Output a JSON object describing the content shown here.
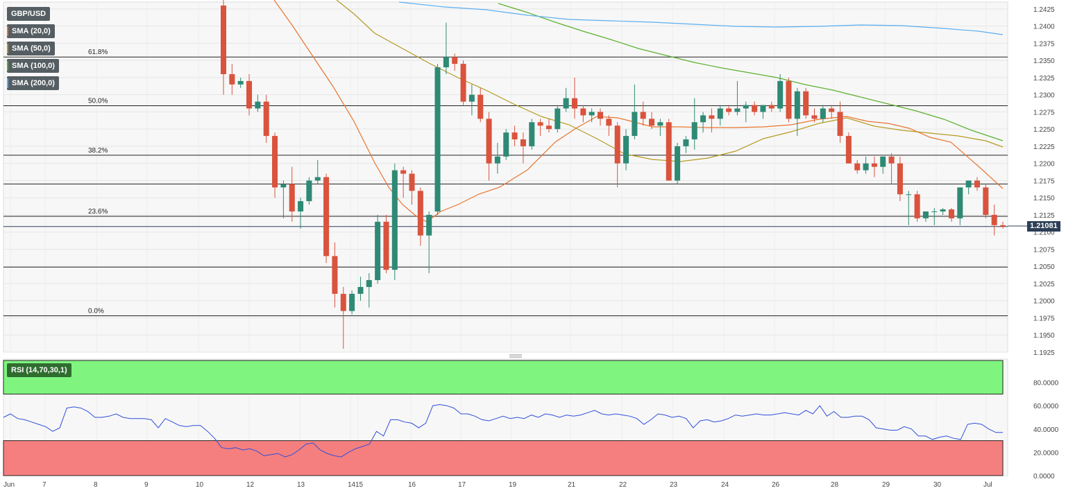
{
  "symbol": "GBP/USD",
  "legend": [
    {
      "label": "SMA (20,0)",
      "color": "#e8742f"
    },
    {
      "label": "SMA (50,0)",
      "color": "#b59a22"
    },
    {
      "label": "SMA (100,0)",
      "color": "#5bb02e"
    },
    {
      "label": "SMA (200,0)",
      "color": "#5aaef0"
    }
  ],
  "rsi_label": "RSI (14,70,30,1)",
  "current_price": "1.21081",
  "colors": {
    "up": "#2e8a74",
    "down": "#d9533d",
    "rsi_line": "#2f4fd8",
    "overbought": "#7ff57f",
    "oversold": "#f57f7f"
  },
  "chart_data": {
    "type": "candlestick",
    "x_labels": [
      "Jun",
      "7",
      "8",
      "9",
      "10",
      "12",
      "13",
      "14",
      "15",
      "16",
      "17",
      "19",
      "21",
      "22",
      "23",
      "24",
      "26",
      "28",
      "29",
      "30",
      "Jul"
    ],
    "y_ticks": [
      "1.2425",
      "1.2400",
      "1.2375",
      "1.2350",
      "1.2325",
      "1.2300",
      "1.2275",
      "1.2250",
      "1.2225",
      "1.2200",
      "1.2175",
      "1.2150",
      "1.2125",
      "1.2100",
      "1.2075",
      "1.2050",
      "1.2025",
      "1.2000",
      "1.1975",
      "1.1950",
      "1.1925"
    ],
    "ylim": [
      1.1925,
      1.2435
    ],
    "fib_levels": [
      {
        "label": "61.8%",
        "value": 1.2355
      },
      {
        "label": "50.0%",
        "value": 1.2284
      },
      {
        "label": "38.2%",
        "value": 1.2212
      },
      {
        "label": "",
        "value": 1.217
      },
      {
        "label": "23.6%",
        "value": 1.2123
      },
      {
        "label": "",
        "value": 1.2049
      },
      {
        "label": "0.0%",
        "value": 1.1978
      }
    ],
    "candles": [
      [
        1.243,
        1.244,
        1.23,
        1.233
      ],
      [
        1.233,
        1.2345,
        1.23,
        1.2315
      ],
      [
        1.2315,
        1.2325,
        1.231,
        1.232
      ],
      [
        1.232,
        1.233,
        1.227,
        1.228
      ],
      [
        1.228,
        1.23,
        1.2275,
        1.229
      ],
      [
        1.229,
        1.23,
        1.223,
        1.224
      ],
      [
        1.224,
        1.2245,
        1.215,
        1.2165
      ],
      [
        1.2165,
        1.2175,
        1.212,
        1.217
      ],
      [
        1.217,
        1.2195,
        1.2115,
        1.213
      ],
      [
        1.213,
        1.215,
        1.2105,
        1.2145
      ],
      [
        1.2145,
        1.218,
        1.214,
        1.2175
      ],
      [
        1.2175,
        1.2205,
        1.217,
        1.218
      ],
      [
        1.218,
        1.2185,
        1.2055,
        1.2065
      ],
      [
        1.2065,
        1.2085,
        1.199,
        1.201
      ],
      [
        1.201,
        1.202,
        1.193,
        1.1985
      ],
      [
        1.1985,
        1.2015,
        1.198,
        1.201
      ],
      [
        1.201,
        1.2035,
        1.2,
        1.202
      ],
      [
        1.202,
        1.204,
        1.199,
        1.203
      ],
      [
        1.203,
        1.2125,
        1.2025,
        1.2115
      ],
      [
        1.2115,
        1.2125,
        1.204,
        1.2045
      ],
      [
        1.2045,
        1.22,
        1.203,
        1.219
      ],
      [
        1.219,
        1.2195,
        1.215,
        1.2185
      ],
      [
        1.2185,
        1.219,
        1.214,
        1.216
      ],
      [
        1.216,
        1.2165,
        1.208,
        1.2095
      ],
      [
        1.2095,
        1.213,
        1.204,
        1.2125
      ],
      [
        1.213,
        1.2345,
        1.2125,
        1.234
      ],
      [
        1.234,
        1.2405,
        1.233,
        1.2355
      ],
      [
        1.2355,
        1.236,
        1.2335,
        1.2345
      ],
      [
        1.2345,
        1.235,
        1.2285,
        1.229
      ],
      [
        1.229,
        1.2315,
        1.227,
        1.23
      ],
      [
        1.23,
        1.231,
        1.226,
        1.2265
      ],
      [
        1.2265,
        1.2275,
        1.2175,
        1.22
      ],
      [
        1.22,
        1.223,
        1.2185,
        1.221
      ],
      [
        1.221,
        1.225,
        1.2205,
        1.2245
      ],
      [
        1.2245,
        1.2255,
        1.2225,
        1.2235
      ],
      [
        1.2235,
        1.2245,
        1.22,
        1.2225
      ],
      [
        1.2225,
        1.2265,
        1.222,
        1.226
      ],
      [
        1.226,
        1.2265,
        1.224,
        1.2255
      ],
      [
        1.2255,
        1.2265,
        1.2245,
        1.225
      ],
      [
        1.225,
        1.2285,
        1.2245,
        1.228
      ],
      [
        1.228,
        1.231,
        1.2275,
        1.2295
      ],
      [
        1.2295,
        1.2325,
        1.2265,
        1.228
      ],
      [
        1.228,
        1.2285,
        1.226,
        1.227
      ],
      [
        1.227,
        1.228,
        1.226,
        1.2275
      ],
      [
        1.2275,
        1.228,
        1.2255,
        1.2265
      ],
      [
        1.2265,
        1.227,
        1.224,
        1.2255
      ],
      [
        1.2255,
        1.226,
        1.2165,
        1.22
      ],
      [
        1.22,
        1.225,
        1.219,
        1.224
      ],
      [
        1.224,
        1.2315,
        1.2235,
        1.2275
      ],
      [
        1.2275,
        1.229,
        1.2255,
        1.2265
      ],
      [
        1.2265,
        1.2275,
        1.225,
        1.2255
      ],
      [
        1.2255,
        1.2265,
        1.224,
        1.226
      ],
      [
        1.226,
        1.2265,
        1.2175,
        1.2175
      ],
      [
        1.2175,
        1.223,
        1.217,
        1.2225
      ],
      [
        1.2225,
        1.224,
        1.2215,
        1.2235
      ],
      [
        1.2235,
        1.2295,
        1.222,
        1.226
      ],
      [
        1.226,
        1.2275,
        1.2245,
        1.227
      ],
      [
        1.227,
        1.228,
        1.2245,
        1.2265
      ],
      [
        1.2265,
        1.2285,
        1.2255,
        1.228
      ],
      [
        1.228,
        1.2285,
        1.227,
        1.2275
      ],
      [
        1.2275,
        1.232,
        1.227,
        1.228
      ],
      [
        1.228,
        1.229,
        1.226,
        1.2285
      ],
      [
        1.2285,
        1.229,
        1.227,
        1.2275
      ],
      [
        1.2275,
        1.2285,
        1.2265,
        1.2285
      ],
      [
        1.2285,
        1.229,
        1.2275,
        1.228
      ],
      [
        1.228,
        1.233,
        1.2275,
        1.232
      ],
      [
        1.232,
        1.2325,
        1.226,
        1.2265
      ],
      [
        1.2265,
        1.231,
        1.224,
        1.2305
      ],
      [
        1.2305,
        1.231,
        1.2265,
        1.227
      ],
      [
        1.227,
        1.228,
        1.226,
        1.2265
      ],
      [
        1.2265,
        1.2285,
        1.226,
        1.228
      ],
      [
        1.228,
        1.2285,
        1.2265,
        1.2275
      ],
      [
        1.2275,
        1.229,
        1.223,
        1.224
      ],
      [
        1.224,
        1.2245,
        1.22,
        1.22
      ],
      [
        1.22,
        1.2205,
        1.2185,
        1.219
      ],
      [
        1.219,
        1.221,
        1.2185,
        1.22
      ],
      [
        1.22,
        1.221,
        1.218,
        1.2195
      ],
      [
        1.2195,
        1.221,
        1.2185,
        1.221
      ],
      [
        1.221,
        1.2215,
        1.217,
        1.22
      ],
      [
        1.22,
        1.221,
        1.2145,
        1.2155
      ],
      [
        1.2155,
        1.216,
        1.211,
        1.2155
      ],
      [
        1.2155,
        1.216,
        1.2115,
        1.212
      ],
      [
        1.212,
        1.213,
        1.2115,
        1.213
      ],
      [
        1.213,
        1.2135,
        1.211,
        1.213
      ],
      [
        1.213,
        1.2135,
        1.2125,
        1.2133
      ],
      [
        1.2133,
        1.2135,
        1.2115,
        1.212
      ],
      [
        1.212,
        1.2165,
        1.211,
        1.2165
      ],
      [
        1.2165,
        1.2175,
        1.2155,
        1.2175
      ],
      [
        1.2175,
        1.218,
        1.216,
        1.2165
      ],
      [
        1.2165,
        1.217,
        1.212,
        1.2125
      ],
      [
        1.2125,
        1.214,
        1.2095,
        1.211
      ],
      [
        1.211,
        1.2115,
        1.2105,
        1.2108
      ]
    ],
    "rsi": {
      "yticks": [
        "80.0000",
        "60.0000",
        "40.0000",
        "20.0000",
        "0.0000"
      ],
      "ylim": [
        0,
        100
      ],
      "overbought": 70,
      "oversold": 30,
      "values": [
        50,
        53,
        49,
        48,
        46,
        44,
        42,
        38,
        41,
        58,
        59,
        58,
        55,
        50,
        50,
        51,
        53,
        50,
        49,
        49,
        49,
        48,
        41,
        49,
        46,
        43,
        42,
        43,
        43,
        38,
        32,
        24,
        23,
        24,
        22,
        23,
        21,
        17,
        18,
        19,
        16,
        18,
        22,
        27,
        28,
        22,
        19,
        17,
        16,
        20,
        23,
        25,
        27,
        38,
        34,
        48,
        48,
        46,
        45,
        41,
        45,
        60,
        61,
        60,
        58,
        53,
        53,
        51,
        48,
        47,
        49,
        51,
        49,
        50,
        49,
        52,
        50,
        53,
        52,
        50,
        52,
        51,
        52,
        54,
        56,
        53,
        52,
        53,
        52,
        51,
        49,
        44,
        48,
        53,
        52,
        50,
        51,
        49,
        41,
        47,
        48,
        46,
        47,
        49,
        52,
        51,
        52,
        53,
        52,
        52,
        53,
        54,
        53,
        52,
        56,
        53,
        60,
        51,
        55,
        50,
        50,
        51,
        51,
        48,
        41,
        40,
        39,
        39,
        42,
        40,
        34,
        34,
        31,
        33,
        34,
        32,
        31,
        44,
        45,
        44,
        40,
        37,
        37
      ]
    },
    "sma": {
      "sma20": [
        [
          395,
          0
        ],
        [
          420,
          35
        ],
        [
          450,
          80
        ],
        [
          480,
          125
        ],
        [
          510,
          175
        ],
        [
          540,
          235
        ],
        [
          560,
          270
        ],
        [
          580,
          295
        ],
        [
          600,
          312
        ],
        [
          615,
          320
        ],
        [
          635,
          305
        ],
        [
          660,
          295
        ],
        [
          690,
          280
        ],
        [
          720,
          270
        ],
        [
          760,
          245
        ],
        [
          800,
          205
        ],
        [
          830,
          185
        ],
        [
          860,
          168
        ],
        [
          890,
          170
        ],
        [
          910,
          175
        ],
        [
          940,
          183
        ],
        [
          980,
          183
        ],
        [
          1020,
          184
        ],
        [
          1060,
          184
        ],
        [
          1100,
          183
        ],
        [
          1140,
          180
        ],
        [
          1180,
          172
        ],
        [
          1220,
          168
        ],
        [
          1250,
          175
        ],
        [
          1280,
          178
        ],
        [
          1310,
          185
        ],
        [
          1340,
          198
        ],
        [
          1370,
          205
        ],
        [
          1410,
          240
        ],
        [
          1445,
          272
        ]
      ],
      "sma50": [
        [
          485,
          0
        ],
        [
          510,
          20
        ],
        [
          540,
          48
        ],
        [
          580,
          70
        ],
        [
          620,
          92
        ],
        [
          660,
          112
        ],
        [
          700,
          130
        ],
        [
          740,
          150
        ],
        [
          780,
          168
        ],
        [
          820,
          180
        ],
        [
          860,
          200
        ],
        [
          900,
          222
        ],
        [
          940,
          230
        ],
        [
          980,
          233
        ],
        [
          1020,
          228
        ],
        [
          1060,
          218
        ],
        [
          1100,
          200
        ],
        [
          1140,
          190
        ],
        [
          1180,
          178
        ],
        [
          1220,
          170
        ],
        [
          1260,
          182
        ],
        [
          1300,
          188
        ],
        [
          1340,
          192
        ],
        [
          1380,
          196
        ],
        [
          1420,
          203
        ],
        [
          1445,
          212
        ]
      ],
      "sma100": [
        [
          718,
          5
        ],
        [
          760,
          18
        ],
        [
          800,
          32
        ],
        [
          840,
          45
        ],
        [
          880,
          57
        ],
        [
          920,
          70
        ],
        [
          960,
          80
        ],
        [
          1000,
          90
        ],
        [
          1040,
          98
        ],
        [
          1080,
          105
        ],
        [
          1120,
          112
        ],
        [
          1160,
          122
        ],
        [
          1200,
          130
        ],
        [
          1240,
          140
        ],
        [
          1280,
          150
        ],
        [
          1320,
          160
        ],
        [
          1360,
          172
        ],
        [
          1400,
          188
        ],
        [
          1445,
          203
        ]
      ],
      "sma200": [
        [
          575,
          3
        ],
        [
          640,
          10
        ],
        [
          700,
          14
        ],
        [
          760,
          22
        ],
        [
          820,
          28
        ],
        [
          880,
          30
        ],
        [
          940,
          32
        ],
        [
          1000,
          35
        ],
        [
          1060,
          38
        ],
        [
          1120,
          39
        ],
        [
          1180,
          38
        ],
        [
          1240,
          36
        ],
        [
          1300,
          37
        ],
        [
          1360,
          41
        ],
        [
          1410,
          45
        ],
        [
          1445,
          50
        ]
      ]
    }
  }
}
